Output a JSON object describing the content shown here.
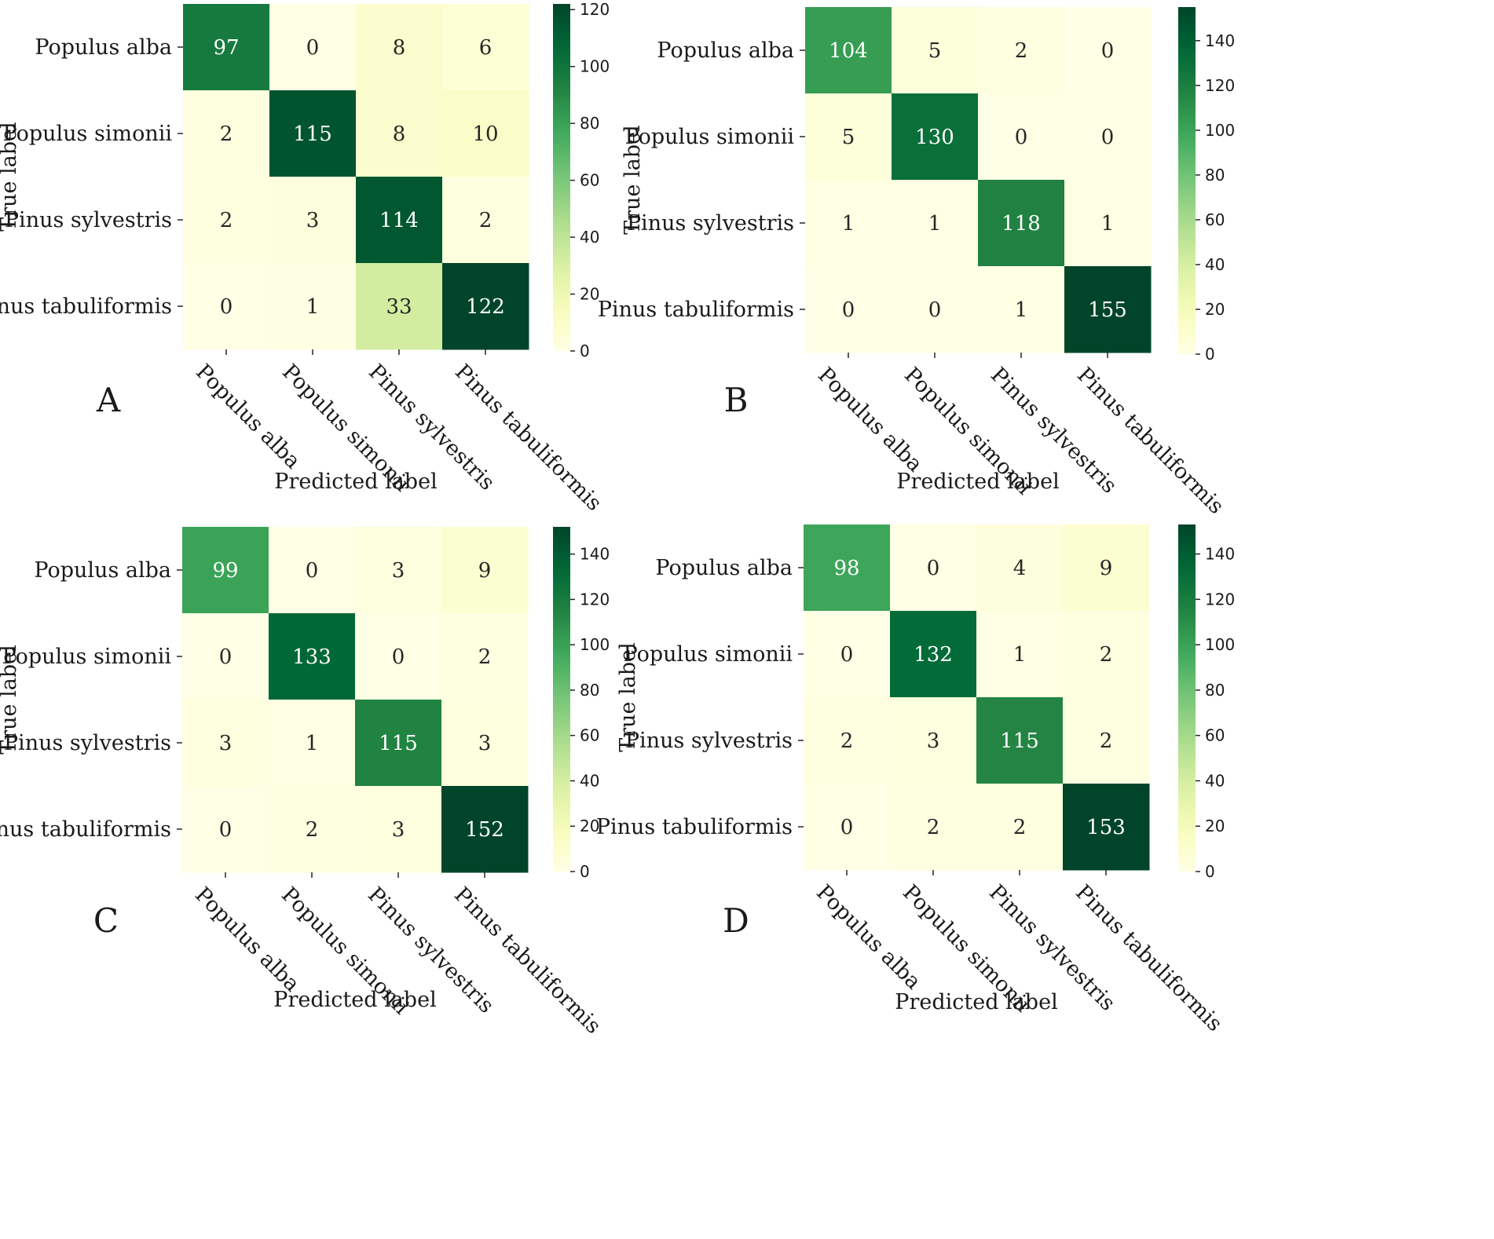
{
  "chart_data": [
    {
      "type": "heatmap",
      "panel": "A",
      "title": "",
      "xlabel": "Predicted label",
      "ylabel": "True label",
      "categories": [
        "Populus alba",
        "Populus simonii",
        "Pinus sylvestris",
        "Pinus tabuliformis"
      ],
      "matrix": [
        [
          97,
          0,
          8,
          6
        ],
        [
          2,
          115,
          8,
          10
        ],
        [
          2,
          3,
          114,
          2
        ],
        [
          0,
          1,
          33,
          122
        ]
      ],
      "colorbar": {
        "min": 0,
        "max": 122,
        "ticks": [
          0,
          20,
          40,
          60,
          80,
          100,
          120
        ]
      },
      "colormap": "Greens"
    },
    {
      "type": "heatmap",
      "panel": "B",
      "title": "",
      "xlabel": "Predicted label",
      "ylabel": "True label",
      "categories": [
        "Populus alba",
        "Populus simonii",
        "Pinus sylvestris",
        "Pinus tabuliformis"
      ],
      "matrix": [
        [
          104,
          5,
          2,
          0
        ],
        [
          5,
          130,
          0,
          0
        ],
        [
          1,
          1,
          118,
          1
        ],
        [
          0,
          0,
          1,
          155
        ]
      ],
      "colorbar": {
        "min": 0,
        "max": 155,
        "ticks": [
          0,
          20,
          40,
          60,
          80,
          100,
          120,
          140
        ]
      },
      "colormap": "Greens"
    },
    {
      "type": "heatmap",
      "panel": "C",
      "title": "",
      "xlabel": "Predicted label",
      "ylabel": "True label",
      "categories": [
        "Populus alba",
        "Populus simonii",
        "Pinus sylvestris",
        "Pinus tabuliformis"
      ],
      "matrix": [
        [
          99,
          0,
          3,
          9
        ],
        [
          0,
          133,
          0,
          2
        ],
        [
          3,
          1,
          115,
          3
        ],
        [
          0,
          2,
          3,
          152
        ]
      ],
      "colorbar": {
        "min": 0,
        "max": 152,
        "ticks": [
          0,
          20,
          40,
          60,
          80,
          100,
          120,
          140
        ]
      },
      "colormap": "Greens"
    },
    {
      "type": "heatmap",
      "panel": "D",
      "title": "",
      "xlabel": "Predicted label",
      "ylabel": "True label",
      "categories": [
        "Populus alba",
        "Populus simonii",
        "Pinus sylvestris",
        "Pinus tabuliformis"
      ],
      "matrix": [
        [
          98,
          0,
          4,
          9
        ],
        [
          0,
          132,
          1,
          2
        ],
        [
          2,
          3,
          115,
          2
        ],
        [
          0,
          2,
          2,
          153
        ]
      ],
      "colorbar": {
        "min": 0,
        "max": 153,
        "ticks": [
          0,
          20,
          40,
          60,
          80,
          100,
          120,
          140
        ]
      },
      "colormap": "Greens"
    }
  ],
  "colors": {
    "colormap_stops": [
      "#ffffe5",
      "#f7fcb9",
      "#d9f0a3",
      "#addd8e",
      "#78c679",
      "#41ab5d",
      "#238443",
      "#006837",
      "#004529"
    ],
    "text_dark": "#262626",
    "text_light": "#ffffff",
    "tick": "#262626"
  }
}
